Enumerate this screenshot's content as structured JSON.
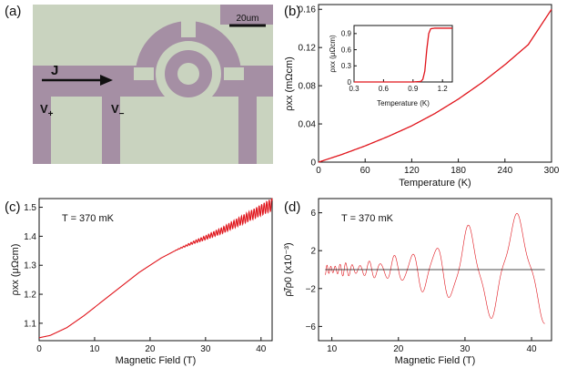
{
  "panel_labels": [
    "(a)",
    "(b)",
    "(c)",
    "(d)"
  ],
  "micrograph": {
    "scale_bar": "20um",
    "current_label": "J",
    "voltage_plus": "V",
    "voltage_plus_sub": "+",
    "voltage_minus": "V",
    "voltage_minus_sub": "−"
  },
  "colors": {
    "curve": "#e0141b",
    "background": "#c9d3bf",
    "sample": "#a58fa4",
    "axis": "#111111"
  },
  "chart_data": [
    {
      "id": "b",
      "type": "line",
      "xlabel": "Temperature (K)",
      "ylabel": "ρxx (mΩcm)",
      "xlim": [
        0,
        300
      ],
      "ylim": [
        0,
        0.165
      ],
      "xticks": [
        "0",
        "60",
        "120",
        "180",
        "240",
        "300"
      ],
      "yticks": [
        "0",
        "0.04",
        "0.08",
        "0.12",
        "0.16"
      ],
      "series": [
        {
          "name": "rho_xx",
          "x": [
            0,
            30,
            60,
            90,
            120,
            150,
            180,
            210,
            240,
            270,
            300
          ],
          "y": [
            0.0,
            0.008,
            0.017,
            0.027,
            0.038,
            0.051,
            0.066,
            0.083,
            0.102,
            0.123,
            0.16
          ]
        }
      ],
      "inset": {
        "type": "line",
        "xlabel": "Temperature (K)",
        "ylabel": "ρxx (μΩcm)",
        "xlim": [
          0.3,
          1.3
        ],
        "ylim": [
          0,
          1.05
        ],
        "xticks": [
          "0.3",
          "0.6",
          "0.9",
          "1.2"
        ],
        "yticks": [
          "0",
          "0.3",
          "0.6",
          "0.9"
        ],
        "series": [
          {
            "name": "rho_xx_low_T",
            "x": [
              0.3,
              0.9,
              0.98,
              1.0,
              1.02,
              1.04,
              1.06,
              1.08,
              1.12,
              1.3
            ],
            "y": [
              0.0,
              0.0,
              0.01,
              0.05,
              0.2,
              0.6,
              0.9,
              0.99,
              1.0,
              1.0
            ]
          }
        ]
      }
    },
    {
      "id": "c",
      "type": "line",
      "annotation": "T = 370 mK",
      "xlabel": "Magnetic Field (T)",
      "ylabel": "ρxx (μΩcm)",
      "xlim": [
        0,
        42
      ],
      "ylim": [
        1.04,
        1.53
      ],
      "xticks": [
        "0",
        "10",
        "20",
        "30",
        "40"
      ],
      "yticks": [
        "1.1",
        "1.2",
        "1.3",
        "1.4",
        "1.5"
      ],
      "series": [
        {
          "name": "rho_xx_vs_B",
          "x": [
            0,
            2,
            5,
            8,
            10,
            12,
            15,
            18,
            20,
            22,
            25,
            28,
            30,
            33,
            36,
            39,
            42
          ],
          "y": [
            1.05,
            1.058,
            1.085,
            1.125,
            1.155,
            1.185,
            1.23,
            1.275,
            1.3,
            1.325,
            1.355,
            1.38,
            1.395,
            1.42,
            1.45,
            1.48,
            1.51
          ]
        }
      ]
    },
    {
      "id": "d",
      "type": "line",
      "annotation": "T = 370 mK",
      "xlabel": "Magnetic Field (T)",
      "ylabel": "ρ̃/ρ0 (x10⁻³)",
      "xlim": [
        8,
        43
      ],
      "ylim": [
        -7.5,
        7.5
      ],
      "xticks": [
        "10",
        "20",
        "30",
        "40"
      ],
      "yticks": [
        "6",
        "2",
        "−2",
        "−6"
      ],
      "envelope": {
        "x": [
          8,
          15,
          20,
          25,
          30,
          35,
          38,
          41,
          42
        ],
        "amplitude": [
          0.6,
          0.8,
          1.6,
          3.0,
          4.6,
          5.6,
          6.0,
          6.3,
          6.5
        ]
      }
    }
  ]
}
